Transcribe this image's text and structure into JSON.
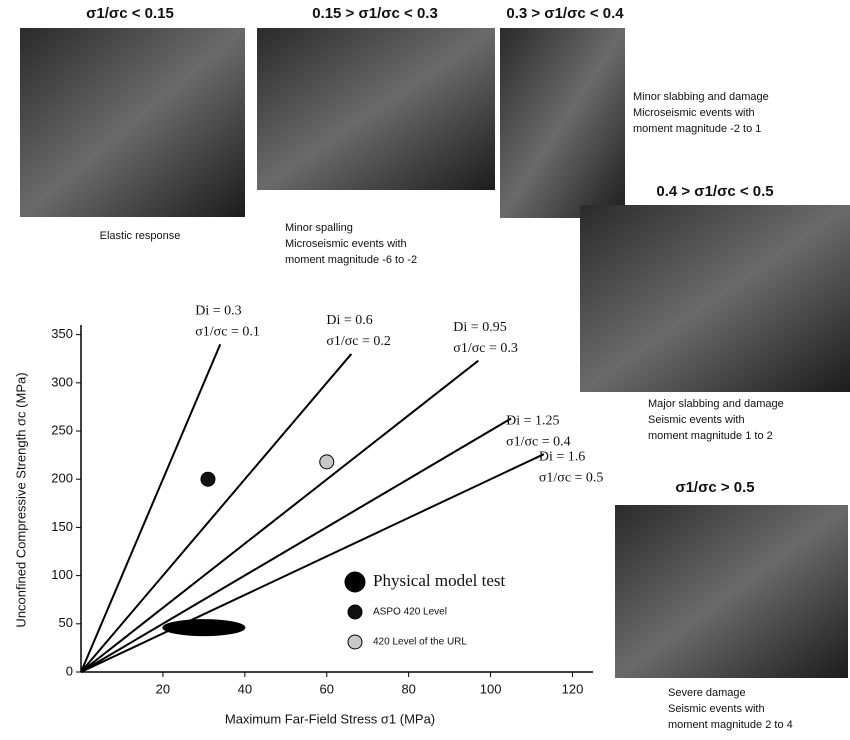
{
  "panels": [
    {
      "title": "σ1/σc < 0.15",
      "caption": [
        "Elastic response"
      ]
    },
    {
      "title": "0.15 > σ1/σc < 0.3",
      "caption": [
        "Minor spalling",
        "Microseismic events with",
        "moment magnitude -6 to -2"
      ]
    },
    {
      "title": "0.3 > σ1/σc < 0.4",
      "caption": [
        "Minor slabbing and damage",
        "Microseismic events with",
        "moment magnitude -2 to 1"
      ]
    },
    {
      "title": "0.4 > σ1/σc < 0.5",
      "caption": [
        "Major slabbing and damage",
        "Seismic events with",
        "moment magnitude 1 to 2"
      ]
    },
    {
      "title": "σ1/σc > 0.5",
      "caption": [
        "Severe damage",
        "Seismic events with",
        "moment magnitude 2 to 4"
      ]
    }
  ],
  "chart_data": {
    "type": "line",
    "xlabel": "Maximum Far-Field Stress σ1 (MPa)",
    "ylabel": "Unconfined Compressive Strength σc (MPa)",
    "xlim": [
      0,
      125
    ],
    "ylim": [
      0,
      360
    ],
    "xticks": [
      20,
      40,
      60,
      80,
      100,
      120
    ],
    "yticks": [
      0,
      50,
      100,
      150,
      200,
      250,
      300,
      350
    ],
    "series": [
      {
        "name": "Di = 0.3",
        "ratio_label": "σ1/σc = 0.1",
        "color": "#000",
        "x": [
          0,
          34
        ],
        "values": [
          0,
          340
        ]
      },
      {
        "name": "Di = 0.6",
        "ratio_label": "σ1/σc = 0.2",
        "color": "#000",
        "x": [
          0,
          66
        ],
        "values": [
          0,
          330
        ]
      },
      {
        "name": "Di = 0.95",
        "ratio_label": "σ1/σc = 0.3",
        "color": "#000",
        "x": [
          0,
          97
        ],
        "values": [
          0,
          323
        ]
      },
      {
        "name": "Di = 1.25",
        "ratio_label": "σ1/σc = 0.4",
        "color": "#000",
        "x": [
          0,
          105
        ],
        "values": [
          0,
          263
        ]
      },
      {
        "name": "Di = 1.6",
        "ratio_label": "σ1/σc = 0.5",
        "color": "#000",
        "x": [
          0,
          113
        ],
        "values": [
          0,
          226
        ]
      }
    ],
    "points": [
      {
        "name": "Physical model test",
        "x": 30,
        "y": 46,
        "color": "#000"
      },
      {
        "name": "ASPO 420 Level",
        "x": 31,
        "y": 200,
        "color": "#111"
      },
      {
        "name": "420 Level of the URL",
        "x": 60,
        "y": 218,
        "color": "#c8c8c8"
      }
    ]
  }
}
